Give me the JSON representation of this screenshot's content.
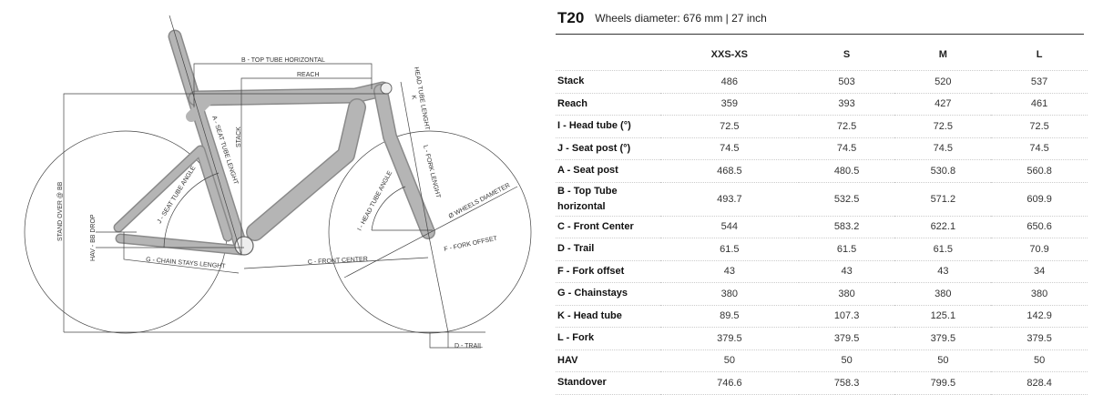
{
  "diagram": {
    "labels": {
      "top_tube_horizontal": "B - TOP TUBE HORIZONTAL",
      "reach": "REACH",
      "head_tube_length": "HEAD TUBE LENGHT",
      "head_tube_k": "K",
      "stack": "STACK",
      "seat_tube_length": "A - SEAT TUBE LENGHT",
      "fork_length": "L - FORK LENGHT",
      "seat_tube_angle": "J - SEAT TUBE ANGLE",
      "head_tube_angle": "I - HEAD TUBE ANGLE",
      "wheels_diameter": "Ø WHEELS DIAMETER",
      "stand_over": "STAND OVER @ BB",
      "hav_bb_drop": "HAV - BB DROP",
      "fork_offset": "F - FORK OFFSET",
      "front_center": "C - FRONT CENTER",
      "chain_stays": "G - CHAIN STAYS LENGHT",
      "trail": "D - TRAIL"
    }
  },
  "geometry": {
    "model": "T20",
    "subtitle": "Wheels diameter: 676 mm | 27 inch",
    "sizes": [
      "XXS-XS",
      "S",
      "M",
      "L"
    ],
    "rows": [
      {
        "label": "Stack",
        "values": [
          "486",
          "503",
          "520",
          "537"
        ]
      },
      {
        "label": "Reach",
        "values": [
          "359",
          "393",
          "427",
          "461"
        ]
      },
      {
        "label": "I - Head tube (°)",
        "values": [
          "72.5",
          "72.5",
          "72.5",
          "72.5"
        ]
      },
      {
        "label": "J - Seat post (°)",
        "values": [
          "74.5",
          "74.5",
          "74.5",
          "74.5"
        ]
      },
      {
        "label": "A - Seat post",
        "values": [
          "468.5",
          "480.5",
          "530.8",
          "560.8"
        ]
      },
      {
        "label": "B - Top Tube horizontal",
        "values": [
          "493.7",
          "532.5",
          "571.2",
          "609.9"
        ]
      },
      {
        "label": "C - Front Center",
        "values": [
          "544",
          "583.2",
          "622.1",
          "650.6"
        ]
      },
      {
        "label": "D - Trail",
        "values": [
          "61.5",
          "61.5",
          "61.5",
          "70.9"
        ]
      },
      {
        "label": "F - Fork offset",
        "values": [
          "43",
          "43",
          "43",
          "34"
        ]
      },
      {
        "label": "G - Chainstays",
        "values": [
          "380",
          "380",
          "380",
          "380"
        ]
      },
      {
        "label": "K - Head tube",
        "values": [
          "89.5",
          "107.3",
          "125.1",
          "142.9"
        ]
      },
      {
        "label": "L - Fork",
        "values": [
          "379.5",
          "379.5",
          "379.5",
          "379.5"
        ]
      },
      {
        "label": "HAV",
        "values": [
          "50",
          "50",
          "50",
          "50"
        ]
      },
      {
        "label": "Standover",
        "values": [
          "746.6",
          "758.3",
          "799.5",
          "828.4"
        ]
      }
    ]
  }
}
